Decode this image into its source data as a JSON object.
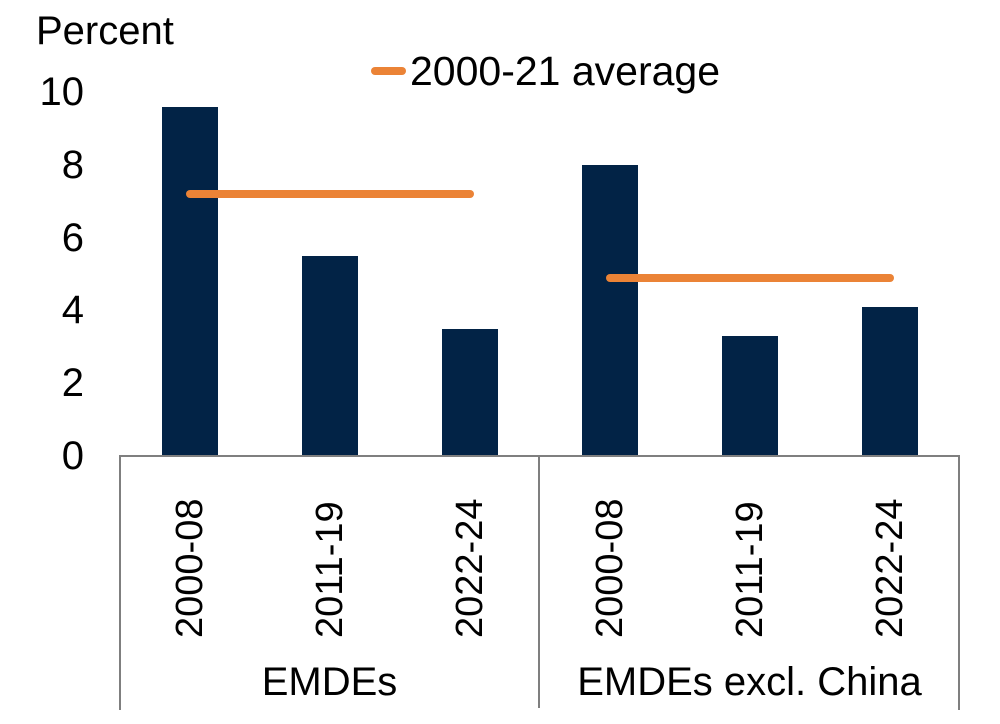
{
  "chart_data": {
    "type": "bar",
    "ylabel": "Percent",
    "ylim": [
      0,
      10
    ],
    "yticks": [
      0,
      2,
      4,
      6,
      8,
      10
    ],
    "grid": false,
    "legend_position": "top",
    "legend": [
      {
        "label": "2000-21 average",
        "color": "#EB8336"
      }
    ],
    "bar_color": "#022346",
    "axis_color": "#7F7F7F",
    "categories": [
      "2000-08",
      "2011-19",
      "2022-24"
    ],
    "groups": [
      {
        "label": "EMDEs",
        "values": [
          9.6,
          5.5,
          3.5
        ],
        "average_2000_21": 7.2
      },
      {
        "label": "EMDEs excl. China",
        "values": [
          8.0,
          3.3,
          4.1
        ],
        "average_2000_21": 4.9
      }
    ]
  }
}
